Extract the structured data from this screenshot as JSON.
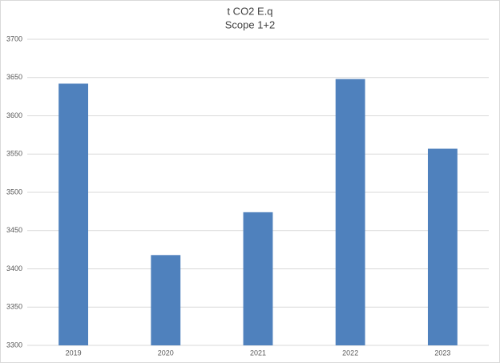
{
  "chart_data": {
    "type": "bar",
    "title": "t CO2 E.q",
    "subtitle": "Scope 1+2",
    "categories": [
      "2019",
      "2020",
      "2021",
      "2022",
      "2023"
    ],
    "values": [
      3642,
      3418,
      3474,
      3648,
      3557
    ],
    "color": "#4f81bd",
    "ylim": [
      3300,
      3700
    ],
    "yticks": [
      3300,
      3350,
      3400,
      3450,
      3500,
      3550,
      3600,
      3650,
      3700
    ],
    "grid": true
  }
}
